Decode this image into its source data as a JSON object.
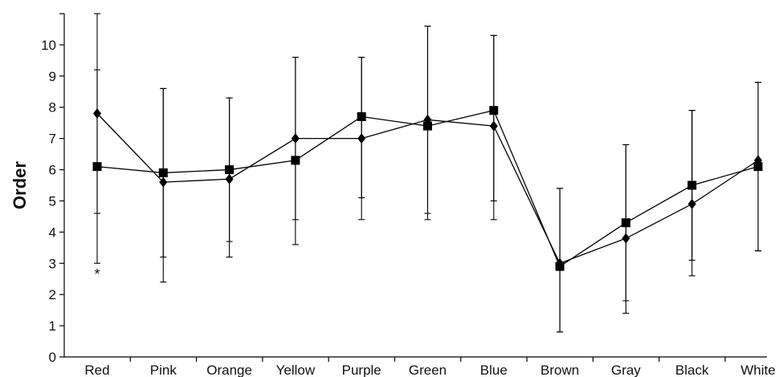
{
  "chart_data": {
    "type": "line",
    "title": "",
    "xlabel": "",
    "ylabel": "Order",
    "ylim": [
      0,
      11
    ],
    "yticks": [
      0,
      1,
      2,
      3,
      4,
      5,
      6,
      7,
      8,
      9,
      10
    ],
    "categories": [
      "Red",
      "Pink",
      "Orange",
      "Yellow",
      "Purple",
      "Green",
      "Blue",
      "Brown",
      "Gray",
      "Black",
      "White"
    ],
    "grid": false,
    "legend": "none",
    "series": [
      {
        "marker": "diamond",
        "values": [
          7.8,
          5.6,
          5.7,
          7.0,
          7.0,
          7.6,
          7.4,
          3.0,
          3.8,
          4.9,
          6.3
        ],
        "error_upper": [
          11.0,
          8.6,
          8.3,
          9.6,
          9.6,
          10.6,
          10.3,
          5.4,
          6.8,
          7.9,
          8.8
        ],
        "error_lower": [
          4.6,
          2.4,
          3.2,
          4.4,
          4.4,
          4.6,
          4.4,
          0.8,
          1.4,
          2.6,
          3.4
        ]
      },
      {
        "marker": "square",
        "values": [
          6.1,
          5.9,
          6.0,
          6.3,
          7.7,
          7.4,
          7.9,
          2.9,
          4.3,
          5.5,
          6.1
        ],
        "error_upper": [
          9.2,
          8.6,
          8.3,
          9.6,
          9.6,
          10.6,
          10.3,
          5.4,
          6.8,
          7.9,
          8.8
        ],
        "error_lower": [
          3.0,
          3.2,
          3.7,
          3.6,
          5.1,
          4.4,
          5.0,
          0.8,
          1.8,
          3.1,
          3.4
        ]
      }
    ],
    "annotations": [
      {
        "category": "Red",
        "text": "*"
      }
    ],
    "colors": {
      "line": "#000000",
      "marker": "#000000"
    }
  }
}
